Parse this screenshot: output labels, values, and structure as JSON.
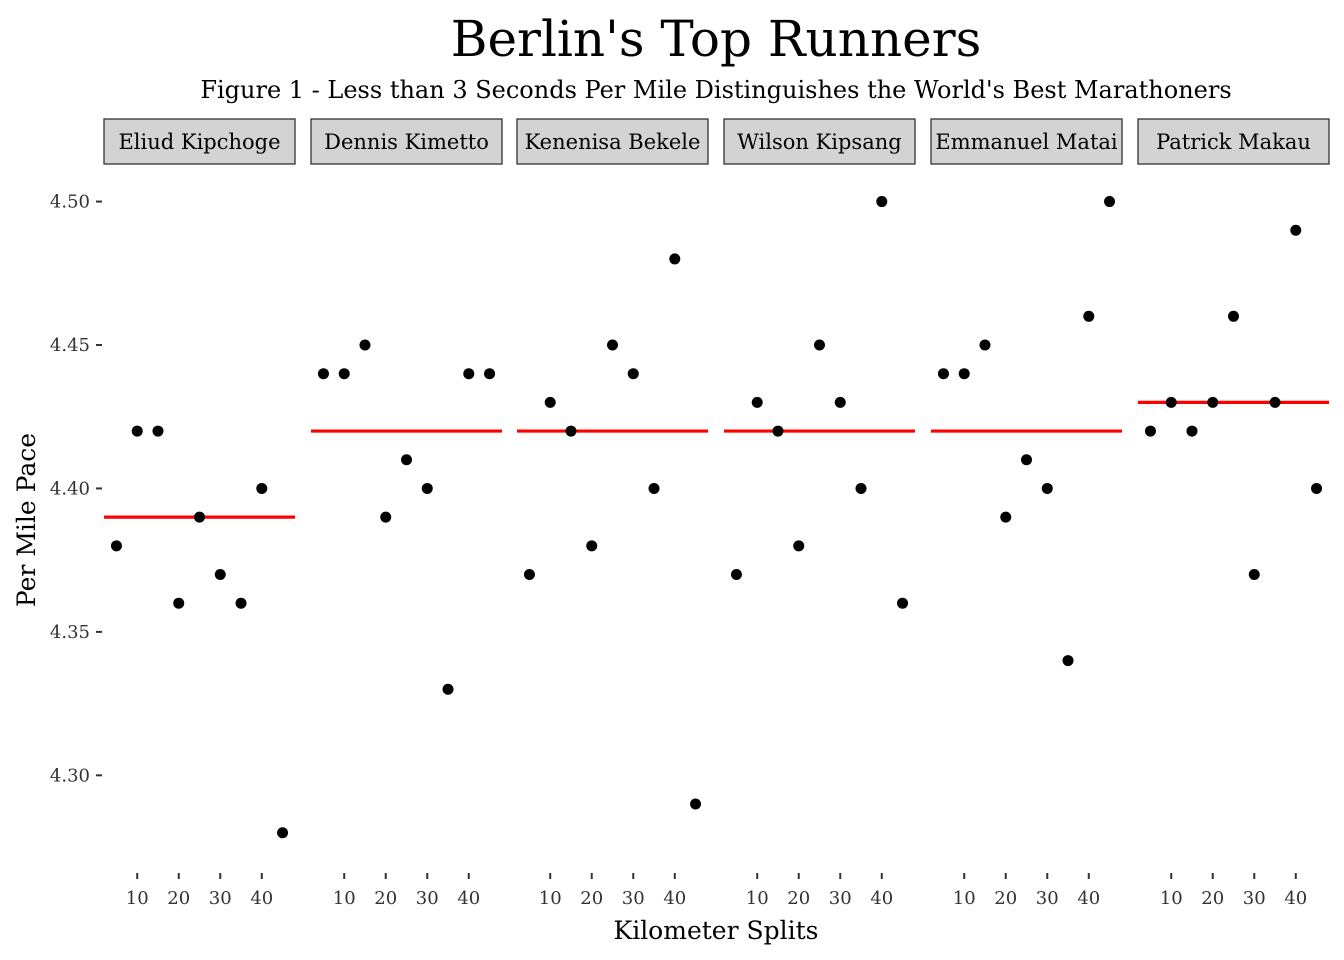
{
  "chart_data": {
    "type": "scatter",
    "title": "Berlin's Top Runners",
    "subtitle": "Figure 1 - Less than 3 Seconds Per Mile Distinguishes the World's Best Marathoners",
    "xlabel": "Kilometer Splits",
    "ylabel": "Per Mile Pace",
    "xlim": [
      2,
      48
    ],
    "ylim": [
      4.267,
      4.511
    ],
    "x_ticks": [
      10,
      20,
      30,
      40
    ],
    "x_tick_labels": [
      "10",
      "20",
      "30",
      "40"
    ],
    "y_ticks": [
      4.3,
      4.35,
      4.4,
      4.45,
      4.5
    ],
    "y_tick_labels": [
      "4.30",
      "4.35",
      "4.40",
      "4.45",
      "4.50"
    ],
    "grid": false,
    "point_color": "#000000",
    "mean_line_color": "#ff0000",
    "strip_fill": "#d3d3d3",
    "panels": [
      {
        "name": "Eliud Kipchoge",
        "x": [
          5,
          10,
          15,
          20,
          25,
          30,
          35,
          40,
          45
        ],
        "y": [
          4.38,
          4.42,
          4.42,
          4.36,
          4.39,
          4.37,
          4.36,
          4.4,
          4.28
        ],
        "mean": 4.39
      },
      {
        "name": "Dennis Kimetto",
        "x": [
          5,
          10,
          15,
          20,
          25,
          30,
          35,
          40,
          45
        ],
        "y": [
          4.44,
          4.44,
          4.45,
          4.39,
          4.41,
          4.4,
          4.33,
          4.44,
          4.44
        ],
        "mean": 4.42
      },
      {
        "name": "Kenenisa Bekele",
        "x": [
          5,
          10,
          15,
          20,
          25,
          30,
          35,
          40,
          45
        ],
        "y": [
          4.37,
          4.43,
          4.42,
          4.38,
          4.45,
          4.44,
          4.4,
          4.48,
          4.29
        ],
        "mean": 4.42
      },
      {
        "name": "Wilson Kipsang",
        "x": [
          5,
          10,
          15,
          20,
          25,
          30,
          35,
          40,
          45
        ],
        "y": [
          4.37,
          4.43,
          4.42,
          4.38,
          4.45,
          4.43,
          4.4,
          4.5,
          4.36
        ],
        "mean": 4.42
      },
      {
        "name": "Emmanuel Matai",
        "x": [
          5,
          10,
          15,
          20,
          25,
          30,
          35,
          40,
          45
        ],
        "y": [
          4.44,
          4.44,
          4.45,
          4.39,
          4.41,
          4.4,
          4.34,
          4.46,
          4.5
        ],
        "mean": 4.42
      },
      {
        "name": "Patrick Makau",
        "x": [
          5,
          10,
          15,
          20,
          25,
          30,
          35,
          40,
          45
        ],
        "y": [
          4.42,
          4.43,
          4.42,
          4.43,
          4.46,
          4.37,
          4.43,
          4.49,
          4.4
        ],
        "mean": 4.43
      }
    ]
  }
}
